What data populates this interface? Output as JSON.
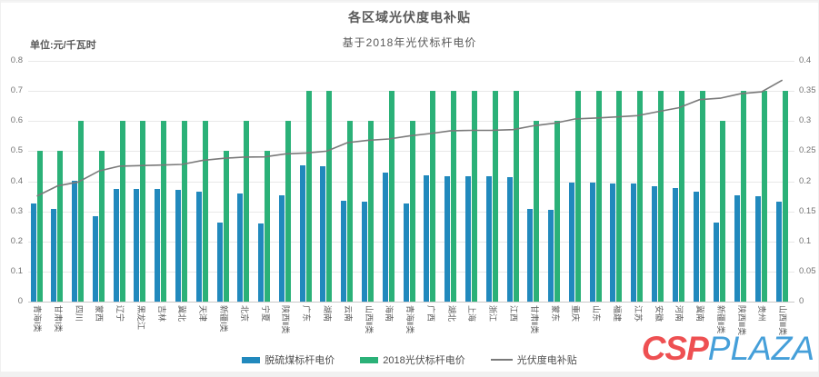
{
  "watermark": {
    "csp": "CSP",
    "plaza": "PLAZA",
    "csp_color": "#ee5052",
    "plaza_color": "#459fd9"
  },
  "chart_data": {
    "type": "bar",
    "subtype": "grouped bars with overlay line (dual axis)",
    "title": "各区域光伏度电补贴",
    "subtitle": "基于2018年光伏标杆电价",
    "unit_label": "单位:元/千瓦时",
    "xlabel": "",
    "ylabel_left": "元/千瓦时",
    "ylabel_right": "元/千瓦时",
    "grid": true,
    "legend_position": "bottom",
    "categories": [
      "青海Ⅰ类",
      "甘肃Ⅰ类",
      "四川",
      "蒙西",
      "辽宁",
      "黑龙江",
      "吉林",
      "冀北",
      "天津",
      "新疆Ⅰ类",
      "北京",
      "宁夏",
      "陕西Ⅱ类",
      "广东",
      "湖南",
      "云南",
      "山西Ⅱ类",
      "海南",
      "青海Ⅱ类",
      "广西",
      "湖北",
      "上海",
      "浙江",
      "江西",
      "甘肃Ⅱ类",
      "蒙东",
      "重庆",
      "山东",
      "福建",
      "江苏",
      "安徽",
      "河南",
      "冀南",
      "新疆Ⅱ类",
      "陕西Ⅲ类",
      "贵州",
      "山西Ⅲ类"
    ],
    "series": [
      {
        "name": "脱硫煤标杆电价",
        "type": "bar",
        "axis": "left",
        "color": "#2189bd",
        "values": [
          0.3247,
          0.3078,
          0.4012,
          0.2829,
          0.3749,
          0.374,
          0.3731,
          0.372,
          0.3655,
          0.262,
          0.3598,
          0.2595,
          0.3545,
          0.453,
          0.45,
          0.3358,
          0.332,
          0.4298,
          0.3247,
          0.4207,
          0.4161,
          0.4155,
          0.4153,
          0.4143,
          0.3078,
          0.3035,
          0.3964,
          0.3949,
          0.3932,
          0.391,
          0.3844,
          0.3779,
          0.3644,
          0.262,
          0.3545,
          0.3515,
          0.332
        ]
      },
      {
        "name": "2018光伏标杆电价",
        "type": "bar",
        "axis": "left",
        "color": "#2bb178",
        "values": [
          0.5,
          0.5,
          0.6,
          0.5,
          0.6,
          0.6,
          0.6,
          0.6,
          0.6,
          0.5,
          0.6,
          0.5,
          0.6,
          0.7,
          0.7,
          0.6,
          0.6,
          0.7,
          0.6,
          0.7,
          0.7,
          0.7,
          0.7,
          0.7,
          0.6,
          0.6,
          0.7,
          0.7,
          0.7,
          0.7,
          0.7,
          0.7,
          0.7,
          0.6,
          0.7,
          0.7,
          0.7
        ]
      },
      {
        "name": "光伏度电补贴",
        "type": "line",
        "axis": "right",
        "color": "#7a7a7a",
        "values": [
          0.1753,
          0.1922,
          0.1988,
          0.2171,
          0.2251,
          0.226,
          0.2269,
          0.228,
          0.2345,
          0.238,
          0.2402,
          0.2405,
          0.2455,
          0.247,
          0.25,
          0.2642,
          0.268,
          0.2702,
          0.2753,
          0.2793,
          0.2839,
          0.2845,
          0.2847,
          0.2857,
          0.2922,
          0.2965,
          0.3036,
          0.3051,
          0.3068,
          0.309,
          0.3156,
          0.3221,
          0.3356,
          0.338,
          0.3455,
          0.3485,
          0.368
        ]
      }
    ],
    "left_axis": {
      "min": 0,
      "max": 0.8,
      "ticks": [
        {
          "label": "0.8",
          "value": 0.8
        },
        {
          "label": "0.7",
          "value": 0.7
        },
        {
          "label": "0.6",
          "value": 0.6
        },
        {
          "label": "0.5",
          "value": 0.5
        },
        {
          "label": "0.4",
          "value": 0.4
        },
        {
          "label": "0.3",
          "value": 0.3
        },
        {
          "label": "0.2",
          "value": 0.2
        },
        {
          "label": "0.1",
          "value": 0.1
        },
        {
          "label": "0",
          "value": 0
        }
      ]
    },
    "right_axis": {
      "min": 0,
      "max": 0.4,
      "ticks": [
        {
          "label": "0.4",
          "value": 0.4
        },
        {
          "label": "0.35",
          "value": 0.35
        },
        {
          "label": "0.3",
          "value": 0.3
        },
        {
          "label": "0.25",
          "value": 0.25
        },
        {
          "label": "0.2",
          "value": 0.2
        },
        {
          "label": "0.15",
          "value": 0.15
        },
        {
          "label": "0.1",
          "value": 0.1
        },
        {
          "label": "0.05",
          "value": 0.05
        },
        {
          "label": "0",
          "value": 0
        }
      ]
    }
  }
}
